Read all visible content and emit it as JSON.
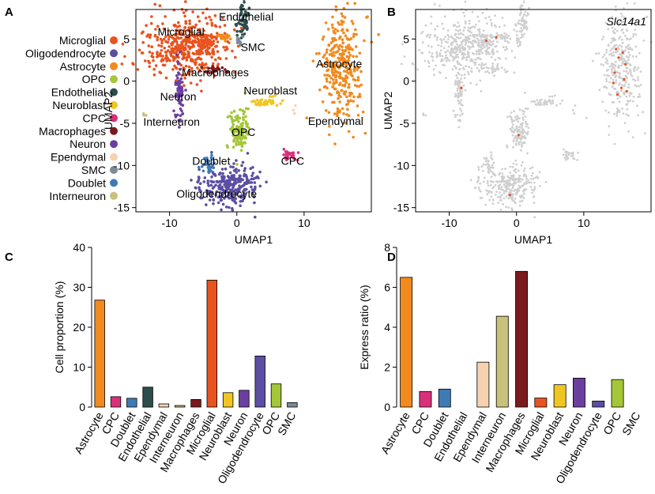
{
  "panels": {
    "a": "A",
    "b": "B",
    "c": "C",
    "d": "D"
  },
  "colors": {
    "Microglial": "#e8531f",
    "Oligodendrocyte": "#5b4ea3",
    "Astrocyte": "#f28a1e",
    "OPC": "#a4c639",
    "Endothelial": "#2c4d4b",
    "Neuroblast": "#f0c722",
    "CPC": "#d9307c",
    "Macrophages": "#7a1a1f",
    "Neuron": "#6b3fa0",
    "Ependymal": "#f6d2b0",
    "SMC": "#7a8a99",
    "Doublet": "#3f7ab5",
    "Interneuron": "#c8c27a",
    "grey": "#cfcfcf",
    "highlight": "#e8531f"
  },
  "chart_data": [
    {
      "type": "scatter",
      "title": "",
      "xlabel": "UMAP1",
      "ylabel": "UMAP2",
      "xlim": [
        -15,
        20
      ],
      "ylim": [
        -15.5,
        8.5
      ],
      "xticks": [
        -10,
        0,
        10
      ],
      "yticks": [
        5,
        0,
        -5,
        -10,
        -15
      ],
      "xtick_labels": [
        "-10",
        "0",
        "10"
      ],
      "ytick_labels": [
        "5",
        "0",
        "-5",
        "-10",
        "-15"
      ],
      "legend": [
        "Microglial",
        "Oligodendrocyte",
        "Astrocyte",
        "OPC",
        "Endothelial",
        "Neuroblast",
        "CPC",
        "Macrophages",
        "Neuron",
        "Ependymal",
        "SMC",
        "Doublet",
        "Interneuron"
      ],
      "clusters": [
        {
          "name": "Microglial",
          "cx": -7.5,
          "cy": 4.0,
          "rx": 4.4,
          "ry": 2.6,
          "n": 420
        },
        {
          "name": "Microglial",
          "cx": -4.5,
          "cy": 5.0,
          "rx": 1.0,
          "ry": 0.5,
          "n": 25
        },
        {
          "name": "Microglial",
          "cx": -4.5,
          "cy": 4.2,
          "rx": 0.9,
          "ry": 0.5,
          "n": 25
        },
        {
          "name": "Astrocyte",
          "cx": 15.5,
          "cy": 1.5,
          "rx": 2.2,
          "ry": 4.5,
          "n": 300
        },
        {
          "name": "Astrocyte",
          "cx": -2.0,
          "cy": 5.2,
          "rx": 0.6,
          "ry": 0.3,
          "n": 18
        },
        {
          "name": "Oligodendrocyte",
          "cx": -1.0,
          "cy": -12.3,
          "rx": 3.0,
          "ry": 1.6,
          "n": 260
        },
        {
          "name": "OPC",
          "cx": 0.3,
          "cy": -5.8,
          "rx": 1.0,
          "ry": 1.8,
          "n": 120
        },
        {
          "name": "Endothelial",
          "cx": 0.8,
          "cy": 6.8,
          "rx": 0.6,
          "ry": 1.6,
          "n": 60
        },
        {
          "name": "Neuron",
          "cx": -8.5,
          "cy": -1.2,
          "rx": 0.4,
          "ry": 2.8,
          "n": 70
        },
        {
          "name": "Neuroblast",
          "cx": 4.5,
          "cy": -2.5,
          "rx": 1.6,
          "ry": 0.5,
          "n": 35
        },
        {
          "name": "CPC",
          "cx": 7.8,
          "cy": -8.8,
          "rx": 0.9,
          "ry": 0.4,
          "n": 30
        },
        {
          "name": "Macrophages",
          "cx": -3.2,
          "cy": 1.4,
          "rx": 1.4,
          "ry": 0.3,
          "n": 22
        },
        {
          "name": "Doublet",
          "cx": -4.3,
          "cy": -10.0,
          "rx": 0.7,
          "ry": 0.7,
          "n": 30
        },
        {
          "name": "SMC",
          "cx": 0.4,
          "cy": 4.8,
          "rx": 0.3,
          "ry": 0.5,
          "n": 10
        },
        {
          "name": "Interneuron",
          "cx": -13.8,
          "cy": -3.8,
          "rx": 0.2,
          "ry": 0.2,
          "n": 3
        },
        {
          "name": "Ependymal",
          "cx": 8.5,
          "cy": -3.5,
          "rx": 0.3,
          "ry": 0.3,
          "n": 3
        }
      ],
      "labels": [
        {
          "text": "Microglial",
          "x": -8.3,
          "y": 5.4
        },
        {
          "text": "Endothelial",
          "x": 1.4,
          "y": 7.2
        },
        {
          "text": "SMC",
          "x": 2.4,
          "y": 3.6
        },
        {
          "text": "Astrocyte",
          "x": 15.2,
          "y": 1.6
        },
        {
          "text": "Macrophages",
          "x": -3.2,
          "y": 0.6
        },
        {
          "text": "Neuroblast",
          "x": 5.0,
          "y": -1.6
        },
        {
          "text": "Neuron",
          "x": -8.7,
          "y": -2.3
        },
        {
          "text": "Interneuron",
          "x": -9.7,
          "y": -5.3
        },
        {
          "text": "Ependymal",
          "x": 14.7,
          "y": -5.2
        },
        {
          "text": "OPC",
          "x": 1.0,
          "y": -6.5
        },
        {
          "text": "CPC",
          "x": 8.3,
          "y": -9.9
        },
        {
          "text": "Doublet",
          "x": -3.8,
          "y": -9.9
        },
        {
          "text": "Oligodendrocyte",
          "x": -3.0,
          "y": -13.8
        }
      ]
    },
    {
      "type": "scatter",
      "title": "Slc14a1",
      "xlabel": "UMAP1",
      "ylabel": "UMAP2",
      "xlim": [
        -15,
        20
      ],
      "ylim": [
        -15.5,
        8.5
      ],
      "xticks": [
        -10,
        0,
        10
      ],
      "yticks": [
        5,
        0,
        -5,
        -10,
        -15
      ],
      "xtick_labels": [
        "-10",
        "0",
        "10"
      ],
      "ytick_labels": [
        "5",
        "0",
        "-5",
        "-10",
        "-15"
      ],
      "highlighted": [
        [
          -4.5,
          4.8
        ],
        [
          15.2,
          2.8
        ],
        [
          14.6,
          1.0
        ],
        [
          16.0,
          0.2
        ],
        [
          15.6,
          -0.8
        ],
        [
          14.8,
          3.8
        ],
        [
          16.2,
          2.0
        ],
        [
          15.0,
          -1.6
        ],
        [
          16.4,
          -1.2
        ],
        [
          14.4,
          -0.2
        ],
        [
          15.8,
          3.4
        ],
        [
          0.3,
          -6.4
        ],
        [
          -3.0,
          5.2
        ],
        [
          -1.0,
          -13.5
        ],
        [
          -8.2,
          -0.8
        ]
      ]
    },
    {
      "type": "bar",
      "title": "",
      "xlabel": "",
      "ylabel": "Cell proportion (%)",
      "ylim": [
        0,
        40
      ],
      "yticks": [
        0,
        10,
        20,
        30,
        40
      ],
      "ytick_labels": [
        "0",
        "10",
        "20",
        "30",
        "40"
      ],
      "categories": [
        "Astrocyte",
        "CPC",
        "Doublet",
        "Endothelial",
        "Ependymal",
        "Interneuron",
        "Macrophages",
        "Microglial",
        "Neuroblast",
        "Neuron",
        "Oligodendrocyte",
        "OPC",
        "SMC"
      ],
      "values": [
        26.8,
        2.6,
        2.2,
        5.0,
        0.8,
        0.4,
        1.9,
        31.8,
        3.6,
        4.2,
        12.8,
        5.8,
        1.1
      ]
    },
    {
      "type": "bar",
      "title": "",
      "xlabel": "",
      "ylabel": "Express ratio (%)",
      "ylim": [
        0,
        8
      ],
      "yticks": [
        0,
        2,
        4,
        6,
        8
      ],
      "ytick_labels": [
        "0",
        "2",
        "4",
        "6",
        "8"
      ],
      "categories": [
        "Astrocyte",
        "CPC",
        "Doublet",
        "Endothelial",
        "Ependymal",
        "Interneuron",
        "Macrophages",
        "Microglial",
        "Neuroblast",
        "Neuron",
        "Oligodendrocyte",
        "OPC",
        "SMC"
      ],
      "values": [
        6.5,
        0.78,
        0.9,
        0,
        2.25,
        4.55,
        6.8,
        0.45,
        1.12,
        1.45,
        0.3,
        1.38,
        0
      ]
    }
  ]
}
